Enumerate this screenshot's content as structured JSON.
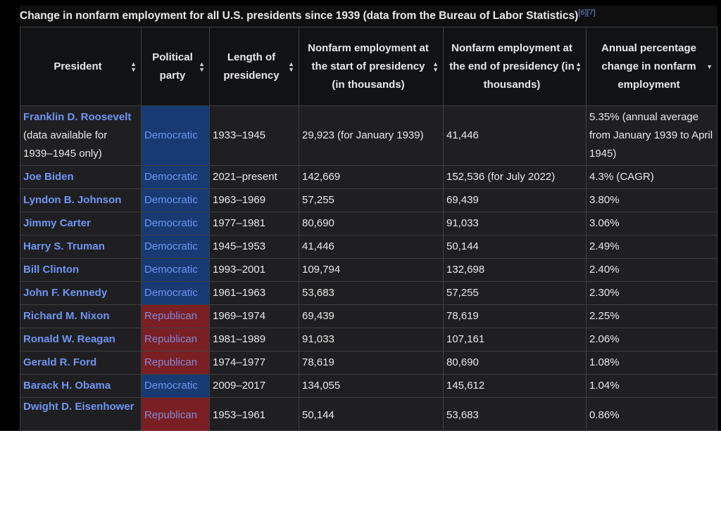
{
  "caption": {
    "text": "Change in nonfarm employment for all U.S. presidents since 1939 (data from the Bureau of Labor Statistics)",
    "refs": "[6][7]"
  },
  "colors": {
    "democratic": "#173a73",
    "republican": "#7a1f24",
    "link": "#6f95f2",
    "row_background": "#1f1f21",
    "header_background": "#111214"
  },
  "headers": [
    "President",
    "Political party",
    "Length of presidency",
    "Nonfarm employment at the start of presidency (in thousands)",
    "Nonfarm employment at the end of presidency (in thousands)",
    "Annual percentage change in nonfarm employment"
  ],
  "sort_icons": [
    "sort-both-icon",
    "sort-both-icon",
    "sort-both-icon",
    "sort-both-icon",
    "sort-both-icon",
    "sort-descending-icon"
  ],
  "rows": [
    {
      "president": "Franklin D. Roosevelt",
      "note": "(data available for 1939–1945 only)",
      "party": "Democratic",
      "term": "1933–1945",
      "start": "29,923 (for January 1939)",
      "end": "41,446",
      "change": "5.35% (annual average from January 1939 to April 1945)"
    },
    {
      "president": "Joe Biden",
      "party": "Democratic",
      "term": "2021–present",
      "start": "142,669",
      "end": "152,536 (for July 2022)",
      "change": "4.3% (CAGR)"
    },
    {
      "president": "Lyndon B. Johnson",
      "party": "Democratic",
      "term": "1963–1969",
      "start": "57,255",
      "end": "69,439",
      "change": "3.80%"
    },
    {
      "president": "Jimmy Carter",
      "party": "Democratic",
      "term": "1977–1981",
      "start": "80,690",
      "end": "91,033",
      "change": "3.06%"
    },
    {
      "president": "Harry S. Truman",
      "party": "Democratic",
      "term": "1945–1953",
      "start": "41,446",
      "end": "50,144",
      "change": "2.49%"
    },
    {
      "president": "Bill Clinton",
      "party": "Democratic",
      "term": "1993–2001",
      "start": "109,794",
      "end": "132,698",
      "change": "2.40%"
    },
    {
      "president": "John F. Kennedy",
      "party": "Democratic",
      "term": "1961–1963",
      "start": "53,683",
      "end": "57,255",
      "change": "2.30%"
    },
    {
      "president": "Richard M. Nixon",
      "party": "Republican",
      "term": "1969–1974",
      "start": "69,439",
      "end": "78,619",
      "change": "2.25%"
    },
    {
      "president": "Ronald W. Reagan",
      "party": "Republican",
      "term": "1981–1989",
      "start": "91,033",
      "end": "107,161",
      "change": "2.06%"
    },
    {
      "president": "Gerald R. Ford",
      "party": "Republican",
      "term": "1974–1977",
      "start": "78,619",
      "end": "80,690",
      "change": "1.08%"
    },
    {
      "president": "Barack H. Obama",
      "party": "Democratic",
      "term": "2009–2017",
      "start": "134,055",
      "end": "145,612",
      "change": "1.04%"
    },
    {
      "president": "Dwight D. Eisenhower",
      "party": "Republican",
      "term": "1953–1961",
      "start": "50,144",
      "end": "53,683",
      "change": "0.86%"
    }
  ]
}
